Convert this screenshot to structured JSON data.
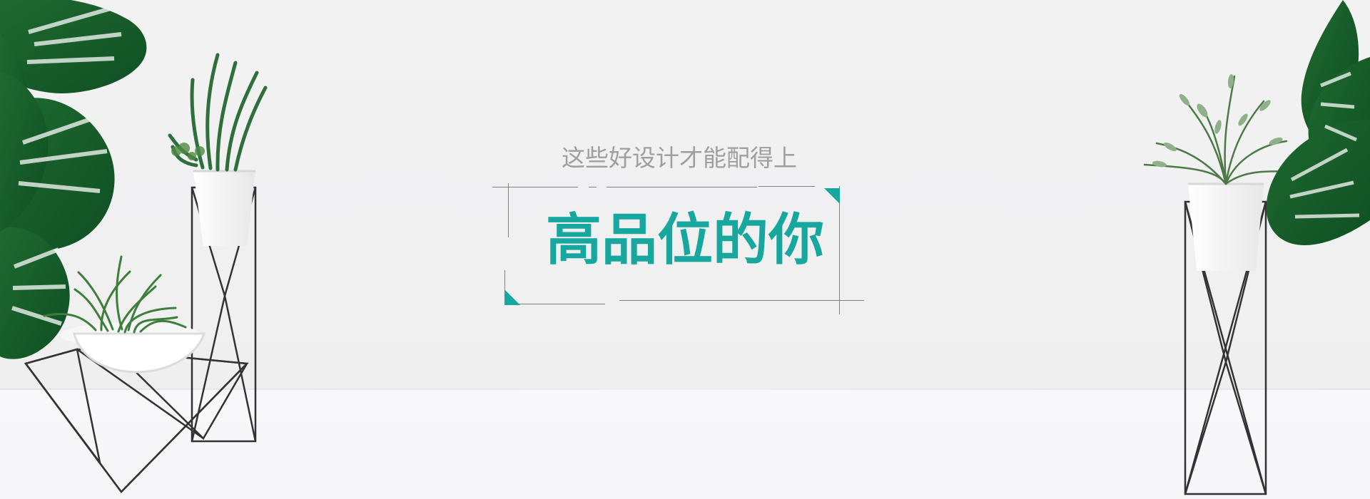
{
  "banner": {
    "subtitle": "这些好设计才能配得上",
    "title": "高品位的你",
    "accent_color": "#17a79f",
    "text_color": "#9f9f9f"
  },
  "icons": {
    "left_plants": "monstera-and-potted-plants",
    "right_plants": "monstera-and-fern-pot"
  }
}
